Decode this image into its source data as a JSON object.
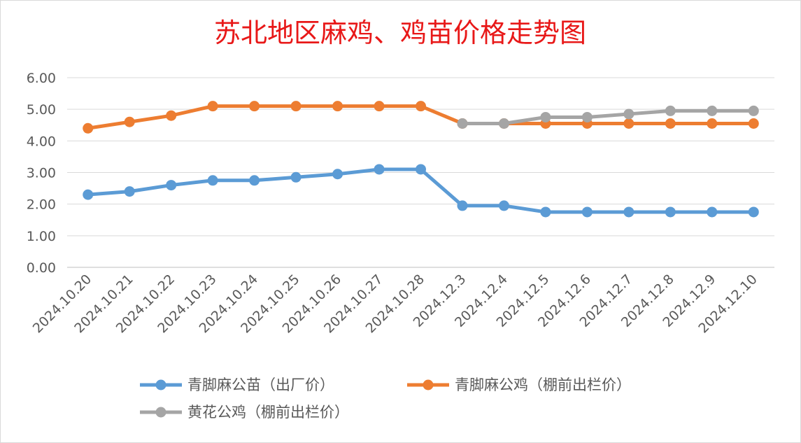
{
  "chart_data": {
    "type": "line",
    "title": "苏北地区麻鸡、鸡苗价格走势图",
    "xlabel": "",
    "ylabel": "",
    "ylim": [
      0,
      6
    ],
    "yticks": [
      "0.00",
      "1.00",
      "2.00",
      "3.00",
      "4.00",
      "5.00",
      "6.00"
    ],
    "grid": true,
    "legend_position": "bottom",
    "categories": [
      "2024.10.20",
      "2024.10.21",
      "2024.10.22",
      "2024.10.23",
      "2024.10.24",
      "2024.10.25",
      "2024.10.26",
      "2024.10.27",
      "2024.10.28",
      "2024.12.3",
      "2024.12.4",
      "2024.12.5",
      "2024.12.6",
      "2024.12.7",
      "2024.12.8",
      "2024.12.9",
      "2024.12.10"
    ],
    "series": [
      {
        "name": "青脚麻公苗（出厂价）",
        "color": "#5b9bd5",
        "values": [
          2.3,
          2.4,
          2.6,
          2.75,
          2.75,
          2.85,
          2.95,
          3.1,
          3.1,
          1.95,
          1.95,
          1.75,
          1.75,
          1.75,
          1.75,
          1.75,
          1.75
        ]
      },
      {
        "name": "青脚麻公鸡（棚前出栏价）",
        "color": "#ed7d31",
        "values": [
          4.4,
          4.6,
          4.8,
          5.1,
          5.1,
          5.1,
          5.1,
          5.1,
          5.1,
          4.55,
          4.55,
          4.55,
          4.55,
          4.55,
          4.55,
          4.55,
          4.55
        ]
      },
      {
        "name": "黄花公鸡（棚前出栏价）",
        "color": "#a5a5a5",
        "values": [
          null,
          null,
          null,
          null,
          null,
          null,
          null,
          null,
          null,
          4.55,
          4.55,
          4.75,
          4.75,
          4.85,
          4.95,
          4.95,
          4.95
        ]
      }
    ]
  }
}
